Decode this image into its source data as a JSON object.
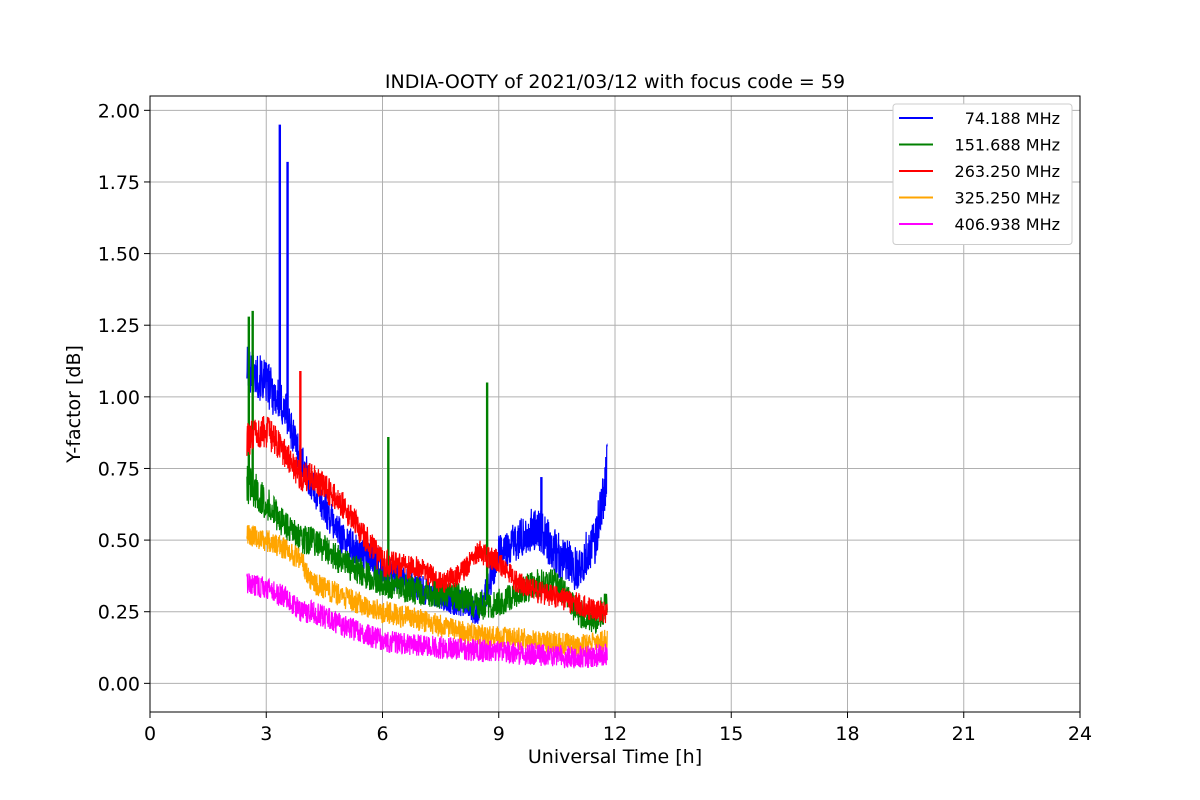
{
  "chart_data": {
    "type": "line",
    "title": "INDIA-OOTY of 2021/03/12 with focus code = 59",
    "xlabel": "Universal Time [h]",
    "ylabel": "Y-factor [dB]",
    "xlim": [
      0,
      24
    ],
    "ylim": [
      -0.1,
      2.05
    ],
    "x_ticks": [
      0,
      3,
      6,
      9,
      12,
      15,
      18,
      21,
      24
    ],
    "y_ticks": [
      0.0,
      0.25,
      0.5,
      0.75,
      1.0,
      1.25,
      1.5,
      1.75,
      2.0
    ],
    "x_tick_labels": [
      "0",
      "3",
      "6",
      "9",
      "12",
      "15",
      "18",
      "21",
      "24"
    ],
    "y_tick_labels": [
      "0.00",
      "0.25",
      "0.50",
      "0.75",
      "1.00",
      "1.25",
      "1.50",
      "1.75",
      "2.00"
    ],
    "grid": true,
    "legend_position": "top-right",
    "series": [
      {
        "name": "74.188 MHz",
        "color": "#0000ff",
        "x": [
          2.5,
          3.0,
          3.5,
          3.9,
          4.2,
          5.0,
          6.0,
          7.0,
          8.0,
          8.5,
          9.0,
          9.5,
          10.0,
          10.5,
          11.0,
          11.5,
          11.8
        ],
        "y": [
          1.1,
          1.05,
          0.95,
          0.78,
          0.68,
          0.5,
          0.4,
          0.33,
          0.28,
          0.25,
          0.45,
          0.5,
          0.55,
          0.45,
          0.4,
          0.5,
          0.75
        ],
        "spread": [
          0.08,
          0.08,
          0.08,
          0.06,
          0.06,
          0.06,
          0.06,
          0.05,
          0.05,
          0.05,
          0.07,
          0.07,
          0.08,
          0.08,
          0.08,
          0.08,
          0.1
        ],
        "spikes": [
          [
            3.35,
            1.95
          ],
          [
            3.55,
            1.82
          ],
          [
            10.1,
            0.72
          ]
        ]
      },
      {
        "name": "151.688 MHz",
        "color": "#008000",
        "x": [
          2.5,
          3.0,
          3.5,
          3.9,
          4.2,
          5.0,
          6.0,
          7.0,
          8.0,
          8.5,
          9.0,
          9.5,
          10.0,
          10.5,
          11.0,
          11.5,
          11.8
        ],
        "y": [
          0.7,
          0.63,
          0.55,
          0.5,
          0.5,
          0.42,
          0.35,
          0.32,
          0.3,
          0.27,
          0.28,
          0.32,
          0.35,
          0.35,
          0.25,
          0.22,
          0.28
        ],
        "spread": [
          0.07,
          0.06,
          0.05,
          0.05,
          0.05,
          0.05,
          0.05,
          0.05,
          0.05,
          0.05,
          0.05,
          0.05,
          0.05,
          0.05,
          0.05,
          0.05,
          0.06
        ],
        "spikes": [
          [
            2.65,
            1.3
          ],
          [
            6.15,
            0.86
          ],
          [
            8.7,
            1.05
          ],
          [
            2.55,
            1.28
          ]
        ]
      },
      {
        "name": "263.250 MHz",
        "color": "#ff0000",
        "x": [
          2.5,
          3.0,
          3.5,
          3.9,
          4.2,
          5.0,
          6.0,
          7.0,
          7.5,
          8.0,
          8.5,
          9.0,
          9.5,
          10.0,
          10.5,
          11.0,
          11.5,
          11.8
        ],
        "y": [
          0.85,
          0.88,
          0.8,
          0.72,
          0.72,
          0.62,
          0.42,
          0.4,
          0.35,
          0.38,
          0.46,
          0.42,
          0.35,
          0.32,
          0.3,
          0.28,
          0.25,
          0.25
        ],
        "spread": [
          0.06,
          0.06,
          0.05,
          0.05,
          0.05,
          0.05,
          0.05,
          0.04,
          0.04,
          0.04,
          0.04,
          0.04,
          0.04,
          0.04,
          0.04,
          0.04,
          0.04,
          0.04
        ],
        "spikes": [
          [
            3.88,
            1.09
          ]
        ]
      },
      {
        "name": "325.250 MHz",
        "color": "#ffa500",
        "x": [
          2.5,
          3.0,
          3.5,
          3.9,
          4.2,
          5.0,
          6.0,
          7.0,
          8.0,
          9.0,
          10.0,
          11.0,
          11.8
        ],
        "y": [
          0.52,
          0.5,
          0.47,
          0.43,
          0.35,
          0.3,
          0.25,
          0.22,
          0.18,
          0.16,
          0.15,
          0.13,
          0.15
        ],
        "spread": [
          0.04,
          0.04,
          0.04,
          0.04,
          0.04,
          0.04,
          0.04,
          0.04,
          0.04,
          0.04,
          0.04,
          0.04,
          0.04
        ],
        "spikes": []
      },
      {
        "name": "406.938 MHz",
        "color": "#ff00ff",
        "x": [
          2.5,
          3.0,
          3.5,
          3.9,
          4.2,
          5.0,
          6.0,
          7.0,
          8.0,
          9.0,
          10.0,
          11.0,
          11.8
        ],
        "y": [
          0.35,
          0.33,
          0.3,
          0.25,
          0.25,
          0.2,
          0.15,
          0.13,
          0.12,
          0.11,
          0.1,
          0.09,
          0.1
        ],
        "spread": [
          0.04,
          0.04,
          0.04,
          0.04,
          0.04,
          0.04,
          0.04,
          0.04,
          0.04,
          0.04,
          0.04,
          0.04,
          0.04
        ],
        "spikes": []
      }
    ]
  }
}
